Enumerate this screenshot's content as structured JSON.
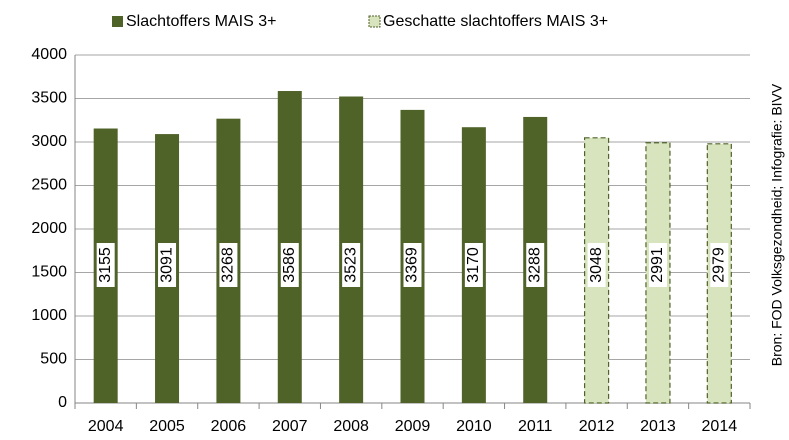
{
  "chart_data": {
    "type": "bar",
    "categories": [
      "2004",
      "2005",
      "2006",
      "2007",
      "2008",
      "2009",
      "2010",
      "2011",
      "2012",
      "2013",
      "2014"
    ],
    "series": [
      {
        "name": "Slachtoffers MAIS 3+",
        "color": "#4f6228",
        "values": [
          3155,
          3091,
          3268,
          3586,
          3523,
          3369,
          3170,
          3288,
          null,
          null,
          null
        ]
      },
      {
        "name": "Geschatte slachtoffers MAIS 3+",
        "color": "#d7e4bd",
        "border_color": "#4f6228",
        "border_style": "dashed",
        "values": [
          null,
          null,
          null,
          null,
          null,
          null,
          null,
          null,
          3048,
          2991,
          2979
        ]
      }
    ],
    "ylim": [
      0,
      4000
    ],
    "yticks": [
      0,
      500,
      1000,
      1500,
      2000,
      2500,
      3000,
      3500,
      4000
    ],
    "grid": true,
    "legend": "top",
    "note": "Bron: FOD Volksgezondheid; Infografie: BIVV"
  }
}
